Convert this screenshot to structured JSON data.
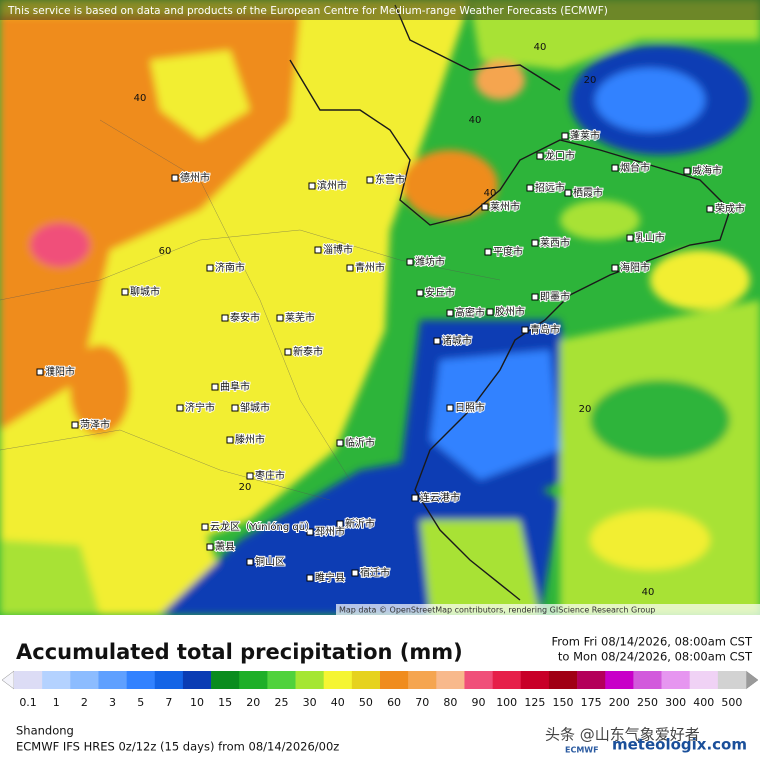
{
  "header": {
    "notice": "This service is based on data and products of the European Centre for Medium-range Weather Forecasts (ECMWF)"
  },
  "map": {
    "attribution": "Map data © OpenStreetMap contributors, rendering GIScience Research Group",
    "cities": [
      "济南市",
      "泰安市",
      "淄博市",
      "青州市",
      "潍坊市",
      "东营市",
      "滨州市",
      "德州市",
      "聊城市",
      "莱芜市",
      "新泰市",
      "临沂市",
      "日照市",
      "青岛市",
      "胶州市",
      "即墨市",
      "高密市",
      "诸城市",
      "安丘市",
      "莱西市",
      "平度市",
      "莱州市",
      "招远市",
      "烟台市",
      "威海市",
      "荣成市",
      "乳山市",
      "海阳市",
      "蓬莱市",
      "龙口市",
      "栖霞市",
      "枣庄市",
      "滕州市",
      "邹城市",
      "曲阜市",
      "济宁市",
      "菏泽市",
      "连云港市",
      "新沂市",
      "邳州市",
      "宿迁市",
      "睢宁县",
      "铜山区",
      "萧县",
      "濮阳市",
      "云龙区（Yúnlóng qū）"
    ],
    "contour_labels": [
      40,
      40,
      40,
      40,
      20,
      20,
      20,
      60,
      40
    ]
  },
  "legend": {
    "title": "Accumulated total precipitation (mm)",
    "period_from": "From Fri 08/14/2026, 08:00am CST",
    "period_to": "to Mon 08/24/2026, 08:00am CST",
    "scale": [
      {
        "value": 0.1,
        "color": "#dcdcf5"
      },
      {
        "value": 1,
        "color": "#b4d2ff"
      },
      {
        "value": 2,
        "color": "#8cbcff"
      },
      {
        "value": 3,
        "color": "#5fa0ff"
      },
      {
        "value": 5,
        "color": "#3282ff"
      },
      {
        "value": 7,
        "color": "#1464e6"
      },
      {
        "value": 10,
        "color": "#0a3cb4"
      },
      {
        "value": 15,
        "color": "#0a8c1e"
      },
      {
        "value": 20,
        "color": "#1eaf28"
      },
      {
        "value": 25,
        "color": "#50d23c"
      },
      {
        "value": 30,
        "color": "#a5e632"
      },
      {
        "value": 40,
        "color": "#f5f532"
      },
      {
        "value": 50,
        "color": "#e6d21e"
      },
      {
        "value": 60,
        "color": "#f08c1e"
      },
      {
        "value": 70,
        "color": "#f5a550"
      },
      {
        "value": 80,
        "color": "#f8b98c"
      },
      {
        "value": 90,
        "color": "#f0507a"
      },
      {
        "value": 100,
        "color": "#e6204a"
      },
      {
        "value": 125,
        "color": "#c80028"
      },
      {
        "value": 150,
        "color": "#a00014"
      },
      {
        "value": 175,
        "color": "#b4005a"
      },
      {
        "value": 200,
        "color": "#c800c8"
      },
      {
        "value": 250,
        "color": "#d25adc"
      },
      {
        "value": 300,
        "color": "#e696f0"
      },
      {
        "value": 400,
        "color": "#f0d2f5"
      },
      {
        "value": 500,
        "color": "#d2d2d2"
      }
    ]
  },
  "footer": {
    "region": "Shandong",
    "model": "ECMWF IFS HRES 0z/12z (15 days) from 08/14/2026/00z",
    "watermark": "头条 @山东气象爱好者",
    "logo_ecmwf": "ECMWF",
    "logo_site": "meteologix.com"
  }
}
